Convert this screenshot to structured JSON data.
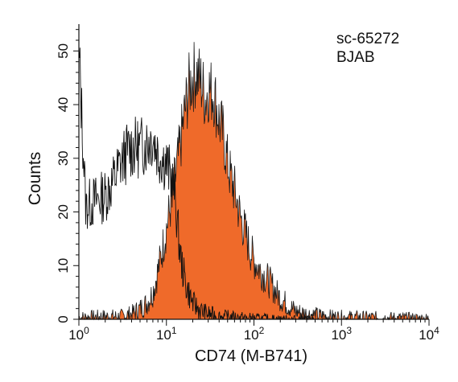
{
  "chart_data": {
    "type": "area",
    "title": "",
    "annotations": [
      "sc-65272",
      "BJAB"
    ],
    "xlabel": "CD74 (M-B741)",
    "ylabel": "Counts",
    "xscale": "log",
    "xlim": [
      1,
      10000
    ],
    "ylim": [
      0,
      55
    ],
    "xticks": [
      {
        "value": 1,
        "base": "10",
        "exp": "0"
      },
      {
        "value": 10,
        "base": "10",
        "exp": "1"
      },
      {
        "value": 100,
        "base": "10",
        "exp": "2"
      },
      {
        "value": 1000,
        "base": "10",
        "exp": "3"
      },
      {
        "value": 10000,
        "base": "10",
        "exp": "4"
      }
    ],
    "yticks": [
      0,
      10,
      20,
      30,
      40,
      50
    ],
    "grid": false,
    "legend": "none",
    "series": [
      {
        "role": "control-outline",
        "style": "outline",
        "color": "#111111",
        "x": [
          1,
          1.2,
          1.5,
          2,
          2.5,
          3,
          3.5,
          4,
          5,
          6,
          7,
          8,
          9,
          10,
          11,
          12,
          13,
          14,
          15,
          17,
          20,
          25,
          30,
          40,
          60,
          100,
          200,
          500
        ],
        "y": [
          50,
          21,
          22,
          23,
          26,
          29,
          31,
          32,
          32,
          33,
          34,
          31,
          30,
          29,
          27,
          25,
          20,
          14,
          10,
          6,
          3,
          1.5,
          1,
          0.5,
          0.3,
          0.1,
          0,
          0
        ]
      },
      {
        "role": "sample-filled",
        "style": "filled",
        "color": "#ef6a2a",
        "x": [
          1,
          2,
          3,
          4,
          5,
          6,
          7,
          8,
          9,
          10,
          12,
          14,
          16,
          18,
          20,
          22,
          25,
          28,
          30,
          35,
          40,
          45,
          50,
          55,
          60,
          70,
          80,
          90,
          100,
          120,
          150,
          180,
          200,
          250,
          300,
          400,
          500,
          700,
          1000,
          2000,
          5000,
          10000
        ],
        "y": [
          0.3,
          0.5,
          0.5,
          1,
          2,
          3,
          5,
          9,
          13,
          17,
          24,
          31,
          38,
          43,
          45,
          46,
          44,
          41,
          43,
          42,
          37,
          34,
          29,
          26,
          24,
          19,
          16,
          13,
          11,
          9,
          7,
          5,
          4,
          2.5,
          1.5,
          1,
          0.8,
          0.5,
          0.4,
          0.3,
          0.2,
          0.1
        ]
      }
    ]
  }
}
